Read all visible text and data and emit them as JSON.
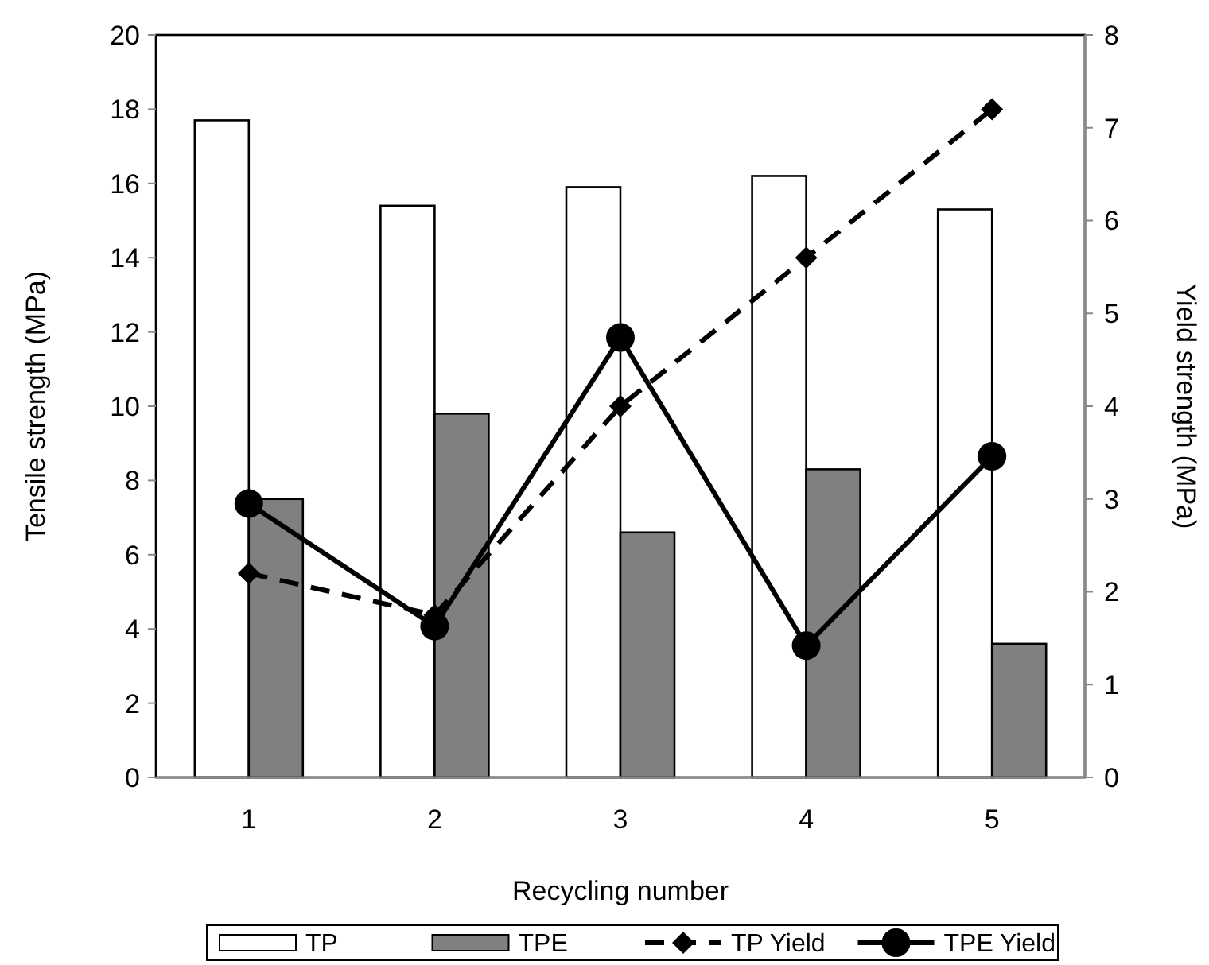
{
  "chart_data": {
    "type": "bar",
    "xlabel": "Recycling number",
    "ylabel": "Tensile strength (MPa)",
    "y2label": "Yield strength (MPa)",
    "categories": [
      "1",
      "2",
      "3",
      "4",
      "5"
    ],
    "series": [
      {
        "name": "TP",
        "color": "#ffffff",
        "values": [
          17.7,
          15.4,
          15.9,
          16.2,
          15.3
        ]
      },
      {
        "name": "TPE",
        "color": "#808080",
        "values": [
          7.5,
          9.8,
          6.6,
          8.3,
          3.6
        ]
      },
      {
        "name": "TP Yield",
        "type": "line",
        "axis": "y2",
        "color": "#000000",
        "marker": "diamond",
        "line_style": "dashed",
        "values": [
          2.2,
          1.75,
          4.0,
          5.6,
          7.2
        ]
      },
      {
        "name": "TPE Yield",
        "type": "line",
        "axis": "y2",
        "color": "#000000",
        "marker": "circle",
        "line_style": "solid",
        "values": [
          2.95,
          1.63,
          4.74,
          1.42,
          3.46
        ]
      }
    ],
    "ylim": [
      0,
      20
    ],
    "yticks": [
      0,
      2,
      4,
      6,
      8,
      10,
      12,
      14,
      16,
      18,
      20
    ],
    "y2lim": [
      0,
      8
    ],
    "y2ticks": [
      0,
      1,
      2,
      3,
      4,
      5,
      6,
      7,
      8
    ],
    "grid": false,
    "legend": "bottom"
  }
}
